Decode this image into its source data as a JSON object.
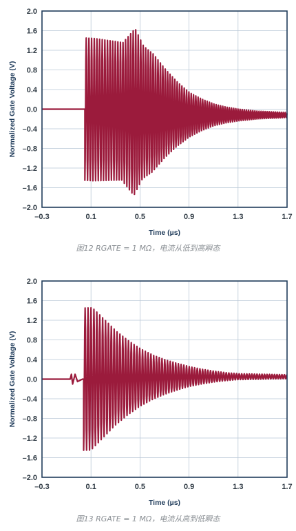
{
  "charts": [
    {
      "caption": "图12 RGATE = 1 MΩ，电流从低到高瞬态",
      "chart_data": {
        "type": "line",
        "title": "",
        "xlabel": "Time (µs)",
        "ylabel": "Normalized Gate Voltage (V)",
        "xlim": [
          -0.3,
          1.7
        ],
        "ylim": [
          -2.0,
          2.0
        ],
        "x_ticks": [
          "–0.3",
          "0.1",
          "0.5",
          "0.9",
          "1.3",
          "1.7"
        ],
        "y_ticks": [
          "2.0",
          "1.6",
          "1.2",
          "0.8",
          "0.4",
          "0.0",
          "–0.4",
          "–0.8",
          "–1.2",
          "–1.6",
          "–2.0"
        ],
        "grid": true,
        "line_color": "#9b1b3c",
        "signal": {
          "baseline": 0.0,
          "onset_time": 0.05,
          "end_time": 1.7,
          "envelope": [
            [
              0.05,
              1.45
            ],
            [
              0.12,
              1.45
            ],
            [
              0.35,
              1.4
            ],
            [
              0.45,
              1.7
            ],
            [
              0.52,
              1.35
            ],
            [
              0.6,
              1.2
            ],
            [
              0.7,
              0.9
            ],
            [
              0.8,
              0.65
            ],
            [
              0.9,
              0.45
            ],
            [
              1.0,
              0.32
            ],
            [
              1.1,
              0.22
            ],
            [
              1.2,
              0.16
            ],
            [
              1.3,
              0.12
            ],
            [
              1.45,
              0.08
            ],
            [
              1.7,
              0.05
            ]
          ],
          "final_value": -0.12,
          "period_start": 0.022,
          "period_end": 0.016
        }
      }
    },
    {
      "caption": "图13 RGATE = 1 MΩ，电流从高到低瞬态",
      "chart_data": {
        "type": "line",
        "title": "",
        "xlabel": "Time (µs)",
        "ylabel": "Normalized Gate Voltage (V)",
        "xlim": [
          -0.3,
          1.7
        ],
        "ylim": [
          -2.0,
          2.0
        ],
        "x_ticks": [
          "–0.3",
          "0.1",
          "0.5",
          "0.9",
          "1.3",
          "1.7"
        ],
        "y_ticks": [
          "2.0",
          "1.6",
          "1.2",
          "0.8",
          "0.4",
          "0.0",
          "–0.4",
          "–0.8",
          "–1.2",
          "–1.6",
          "–2.0"
        ],
        "grid": true,
        "line_color": "#9b1b3c",
        "signal": {
          "baseline": 0.0,
          "pre_step": [
            [
              -0.07,
              0.0
            ],
            [
              -0.06,
              0.1
            ],
            [
              -0.05,
              -0.1
            ],
            [
              -0.03,
              0.1
            ],
            [
              -0.01,
              -0.05
            ],
            [
              0.03,
              0.0
            ]
          ],
          "onset_time": 0.04,
          "end_time": 1.7,
          "envelope": [
            [
              0.04,
              1.45
            ],
            [
              0.1,
              1.45
            ],
            [
              0.2,
              1.2
            ],
            [
              0.3,
              0.95
            ],
            [
              0.4,
              0.75
            ],
            [
              0.5,
              0.58
            ],
            [
              0.6,
              0.45
            ],
            [
              0.7,
              0.35
            ],
            [
              0.8,
              0.27
            ],
            [
              0.9,
              0.2
            ],
            [
              1.0,
              0.15
            ],
            [
              1.1,
              0.11
            ],
            [
              1.2,
              0.08
            ],
            [
              1.3,
              0.06
            ],
            [
              1.5,
              0.05
            ],
            [
              1.7,
              0.04
            ]
          ],
          "final_value": 0.05,
          "period_start": 0.024,
          "period_end": 0.02
        }
      }
    }
  ]
}
